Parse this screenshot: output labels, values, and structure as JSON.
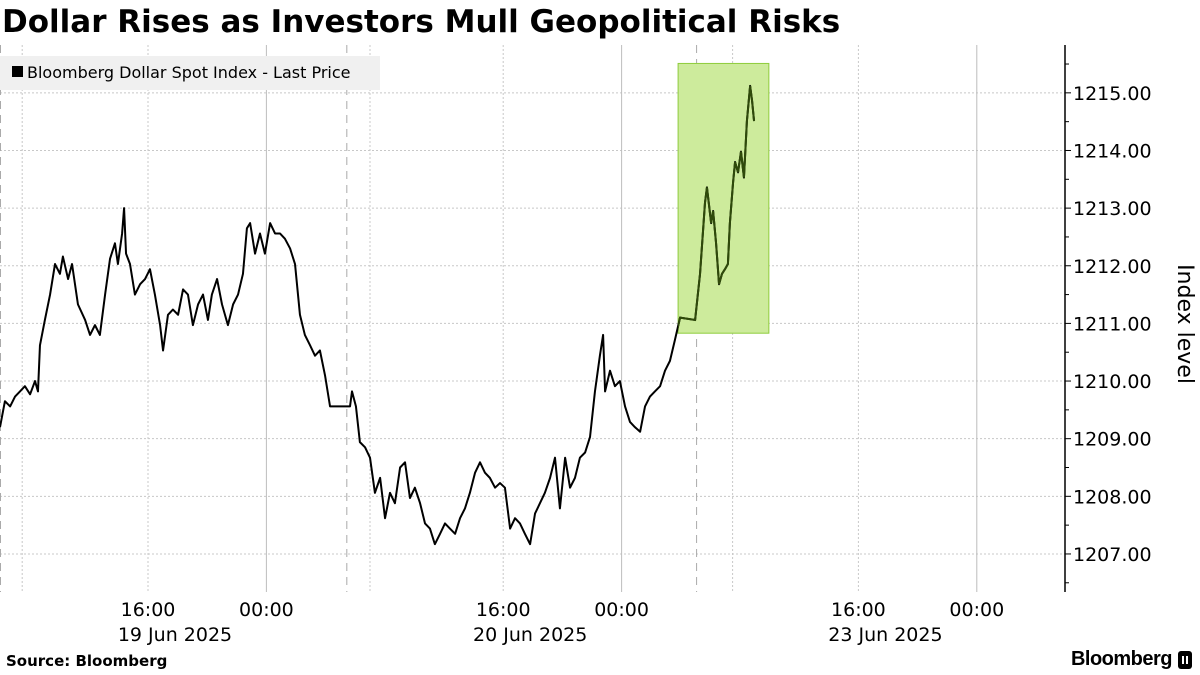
{
  "title": "Dollar Rises as Investors Mull Geopolitical Risks",
  "source": "Source: Bloomberg",
  "brand": "Bloomberg",
  "chart_data": {
    "type": "line",
    "legend": {
      "label": "Bloomberg Dollar Spot Index - Last Price",
      "placement": "top-left"
    },
    "ylabel": "Index level",
    "yaxis_side": "right",
    "ylim": [
      1206.34,
      1215.83
    ],
    "yticks": [
      "1207.00",
      "1208.00",
      "1209.00",
      "1210.00",
      "1211.00",
      "1212.00",
      "1213.00",
      "1214.00",
      "1215.00"
    ],
    "grid": true,
    "xticks": [
      {
        "time": "06-19 16:00",
        "label": "16:00",
        "date": "19 Jun 2025"
      },
      {
        "time": "06-20 00:00",
        "label": "00:00",
        "date": ""
      },
      {
        "time": "06-20 16:00",
        "label": "16:00",
        "date": "20 Jun 2025"
      },
      {
        "time": "06-21 00:00",
        "label": "00:00",
        "date": ""
      },
      {
        "time": "06-23 16:00",
        "label": "16:00",
        "date": "23 Jun 2025"
      },
      {
        "time": "06-24 00:00",
        "label": "00:00",
        "date": ""
      }
    ],
    "colors": {
      "line": "#000000",
      "highlight_fill": "#cdeb9c",
      "highlight_border": "#8fcc3c",
      "highlight_line": "#2f4a0a"
    },
    "highlight": {
      "start": "06-23 03:49",
      "end": "06-23 09:57",
      "ymin": 1210.83,
      "ymax": 1215.51
    },
    "series": [
      {
        "points": [
          [
            "06-19 06:00",
            1209.2
          ],
          [
            "06-19 06:20",
            1209.65
          ],
          [
            "06-19 06:41",
            1209.56
          ],
          [
            "06-19 07:01",
            1209.73
          ],
          [
            "06-19 07:21",
            1209.82
          ],
          [
            "06-19 07:41",
            1209.91
          ],
          [
            "06-19 08:02",
            1209.77
          ],
          [
            "06-19 08:22",
            1210.0
          ],
          [
            "06-19 08:34",
            1209.82
          ],
          [
            "06-19 08:42",
            1210.62
          ],
          [
            "06-19 09:02",
            1211.06
          ],
          [
            "06-19 09:23",
            1211.5
          ],
          [
            "06-19 09:43",
            1212.03
          ],
          [
            "06-19 10:03",
            1211.86
          ],
          [
            "06-19 10:15",
            1212.16
          ],
          [
            "06-19 10:36",
            1211.77
          ],
          [
            "06-19 10:52",
            1212.03
          ],
          [
            "06-19 11:16",
            1211.33
          ],
          [
            "06-19 11:45",
            1211.06
          ],
          [
            "06-19 12:05",
            1210.8
          ],
          [
            "06-19 12:25",
            1210.97
          ],
          [
            "06-19 12:45",
            1210.8
          ],
          [
            "06-19 13:06",
            1211.5
          ],
          [
            "06-19 13:26",
            1212.12
          ],
          [
            "06-19 13:46",
            1212.39
          ],
          [
            "06-19 13:58",
            1212.03
          ],
          [
            "06-19 14:15",
            1212.56
          ],
          [
            "06-19 14:23",
            1213.0
          ],
          [
            "06-19 14:31",
            1212.21
          ],
          [
            "06-19 14:47",
            1212.03
          ],
          [
            "06-19 15:07",
            1211.5
          ],
          [
            "06-19 15:28",
            1211.68
          ],
          [
            "06-19 15:48",
            1211.77
          ],
          [
            "06-19 16:08",
            1211.94
          ],
          [
            "06-19 16:28",
            1211.5
          ],
          [
            "06-19 16:49",
            1210.97
          ],
          [
            "06-19 17:01",
            1210.53
          ],
          [
            "06-19 17:21",
            1211.15
          ],
          [
            "06-19 17:41",
            1211.24
          ],
          [
            "06-19 18:02",
            1211.15
          ],
          [
            "06-19 18:22",
            1211.59
          ],
          [
            "06-19 18:42",
            1211.5
          ],
          [
            "06-19 19:02",
            1210.97
          ],
          [
            "06-19 19:23",
            1211.33
          ],
          [
            "06-19 19:43",
            1211.5
          ],
          [
            "06-19 20:03",
            1211.06
          ],
          [
            "06-19 20:19",
            1211.5
          ],
          [
            "06-19 20:40",
            1211.77
          ],
          [
            "06-19 21:00",
            1211.33
          ],
          [
            "06-19 21:24",
            1210.97
          ],
          [
            "06-19 21:45",
            1211.33
          ],
          [
            "06-19 22:05",
            1211.5
          ],
          [
            "06-19 22:25",
            1211.86
          ],
          [
            "06-19 22:41",
            1212.65
          ],
          [
            "06-19 22:54",
            1212.74
          ],
          [
            "06-19 23:14",
            1212.21
          ],
          [
            "06-19 23:34",
            1212.56
          ],
          [
            "06-19 23:54",
            1212.21
          ],
          [
            "06-20 00:15",
            1212.74
          ],
          [
            "06-20 00:35",
            1212.56
          ],
          [
            "06-20 00:55",
            1212.56
          ],
          [
            "06-20 01:15",
            1212.47
          ],
          [
            "06-20 01:36",
            1212.3
          ],
          [
            "06-20 01:56",
            1212.03
          ],
          [
            "06-20 02:16",
            1211.15
          ],
          [
            "06-20 02:36",
            1210.8
          ],
          [
            "06-20 02:57",
            1210.62
          ],
          [
            "06-20 03:17",
            1210.44
          ],
          [
            "06-20 03:37",
            1210.53
          ],
          [
            "06-20 03:58",
            1210.09
          ],
          [
            "06-20 04:18",
            1209.56
          ],
          [
            "06-20 04:38",
            1209.56
          ],
          [
            "06-20 05:39",
            1209.56
          ],
          [
            "06-20 05:47",
            1209.82
          ],
          [
            "06-20 06:03",
            1209.56
          ],
          [
            "06-20 06:19",
            1208.94
          ],
          [
            "06-20 06:40",
            1208.85
          ],
          [
            "06-20 07:00",
            1208.67
          ],
          [
            "06-20 07:20",
            1208.06
          ],
          [
            "06-20 07:41",
            1208.32
          ],
          [
            "06-20 08:01",
            1207.62
          ],
          [
            "06-20 08:21",
            1208.06
          ],
          [
            "06-20 08:41",
            1207.88
          ],
          [
            "06-20 09:02",
            1208.5
          ],
          [
            "06-20 09:22",
            1208.59
          ],
          [
            "06-20 09:42",
            1207.97
          ],
          [
            "06-20 10:02",
            1208.15
          ],
          [
            "06-20 10:23",
            1207.88
          ],
          [
            "06-20 10:43",
            1207.53
          ],
          [
            "06-20 11:03",
            1207.44
          ],
          [
            "06-20 11:23",
            1207.17
          ],
          [
            "06-20 11:44",
            1207.35
          ],
          [
            "06-20 12:04",
            1207.53
          ],
          [
            "06-20 12:24",
            1207.44
          ],
          [
            "06-20 12:45",
            1207.35
          ],
          [
            "06-20 13:05",
            1207.62
          ],
          [
            "06-20 13:25",
            1207.79
          ],
          [
            "06-20 13:45",
            1208.06
          ],
          [
            "06-20 14:06",
            1208.41
          ],
          [
            "06-20 14:26",
            1208.59
          ],
          [
            "06-20 14:46",
            1208.41
          ],
          [
            "06-20 15:06",
            1208.32
          ],
          [
            "06-20 15:27",
            1208.15
          ],
          [
            "06-20 15:47",
            1208.23
          ],
          [
            "06-20 16:07",
            1208.15
          ],
          [
            "06-20 16:28",
            1207.44
          ],
          [
            "06-20 16:48",
            1207.62
          ],
          [
            "06-20 17:08",
            1207.53
          ],
          [
            "06-20 17:28",
            1207.35
          ],
          [
            "06-20 17:49",
            1207.17
          ],
          [
            "06-20 18:09",
            1207.7
          ],
          [
            "06-20 18:29",
            1207.88
          ],
          [
            "06-20 18:49",
            1208.06
          ],
          [
            "06-20 19:10",
            1208.32
          ],
          [
            "06-20 19:30",
            1208.67
          ],
          [
            "06-20 19:50",
            1207.79
          ],
          [
            "06-20 20:11",
            1208.67
          ],
          [
            "06-20 20:31",
            1208.15
          ],
          [
            "06-20 20:51",
            1208.32
          ],
          [
            "06-20 21:11",
            1208.67
          ],
          [
            "06-20 21:32",
            1208.76
          ],
          [
            "06-20 21:52",
            1209.03
          ],
          [
            "06-20 22:12",
            1209.82
          ],
          [
            "06-20 22:32",
            1210.44
          ],
          [
            "06-20 22:45",
            1210.8
          ],
          [
            "06-20 22:53",
            1209.82
          ],
          [
            "06-20 23:13",
            1210.18
          ],
          [
            "06-20 23:33",
            1209.91
          ],
          [
            "06-20 23:53",
            1210.0
          ],
          [
            "06-23 00:14",
            1209.56
          ],
          [
            "06-23 00:34",
            1209.29
          ],
          [
            "06-23 00:54",
            1209.2
          ],
          [
            "06-23 01:15",
            1209.12
          ],
          [
            "06-23 01:35",
            1209.56
          ],
          [
            "06-23 01:55",
            1209.73
          ],
          [
            "06-23 02:15",
            1209.82
          ],
          [
            "06-23 02:36",
            1209.91
          ],
          [
            "06-23 02:56",
            1210.18
          ],
          [
            "06-23 03:16",
            1210.35
          ],
          [
            "06-23 03:36",
            1210.71
          ],
          [
            "06-23 03:57",
            1211.1
          ],
          [
            "06-23 04:58",
            1211.06
          ],
          [
            "06-23 05:18",
            1211.86
          ],
          [
            "06-23 05:38",
            1213.09
          ],
          [
            "06-23 05:46",
            1213.36
          ],
          [
            "06-23 06:03",
            1212.74
          ],
          [
            "06-23 06:11",
            1212.95
          ],
          [
            "06-23 06:23",
            1212.39
          ],
          [
            "06-23 06:35",
            1211.68
          ],
          [
            "06-23 06:47",
            1211.86
          ],
          [
            "06-23 06:59",
            1211.94
          ],
          [
            "06-23 07:11",
            1212.03
          ],
          [
            "06-23 07:19",
            1212.74
          ],
          [
            "06-23 07:32",
            1213.45
          ],
          [
            "06-23 07:40",
            1213.8
          ],
          [
            "06-23 07:52",
            1213.62
          ],
          [
            "06-23 08:04",
            1213.98
          ],
          [
            "06-23 08:16",
            1213.53
          ],
          [
            "06-23 08:28",
            1214.51
          ],
          [
            "06-23 08:41",
            1215.12
          ],
          [
            "06-23 08:49",
            1214.86
          ],
          [
            "06-23 08:57",
            1214.51
          ]
        ]
      }
    ]
  }
}
